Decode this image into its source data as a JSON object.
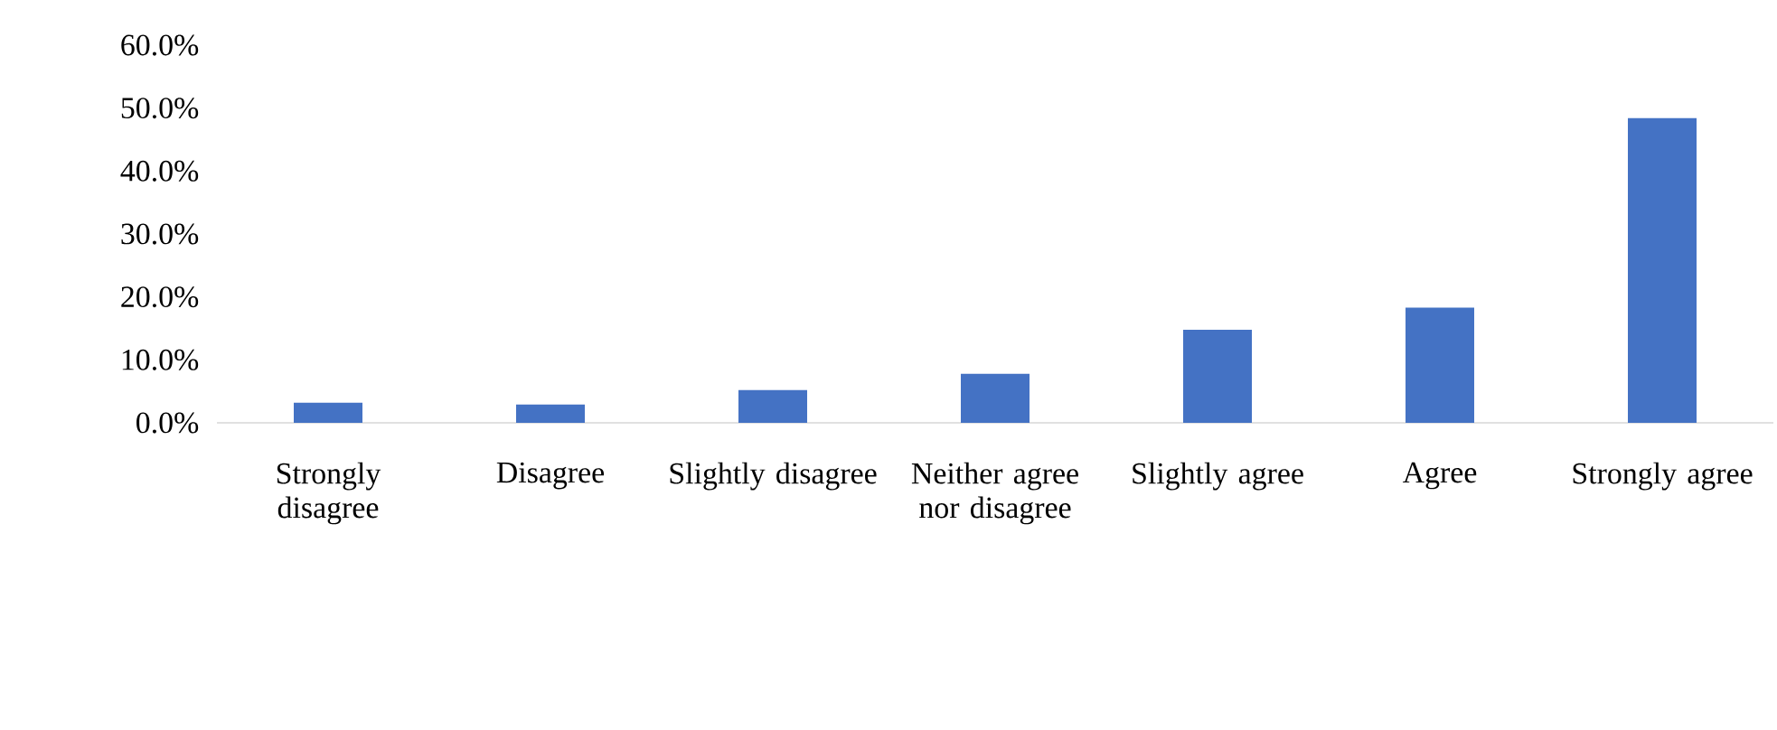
{
  "chart_data": {
    "type": "bar",
    "categories": [
      "Strongly disagree",
      "Disagree",
      "Slightly disagree",
      "Neither agree nor disagree",
      "Slightly agree",
      "Agree",
      "Strongly agree"
    ],
    "values": [
      3.2,
      2.9,
      5.2,
      7.8,
      14.8,
      18.3,
      48.4
    ],
    "color": "#4472c4",
    "ylim": [
      0,
      60
    ],
    "yticks": [
      {
        "value": 0,
        "label": "0.0%"
      },
      {
        "value": 10,
        "label": "10.0%"
      },
      {
        "value": 20,
        "label": "20.0%"
      },
      {
        "value": 30,
        "label": "30.0%"
      },
      {
        "value": 40,
        "label": "40.0%"
      },
      {
        "value": 50,
        "label": "50.0%"
      },
      {
        "value": 60,
        "label": "60.0%"
      }
    ]
  }
}
